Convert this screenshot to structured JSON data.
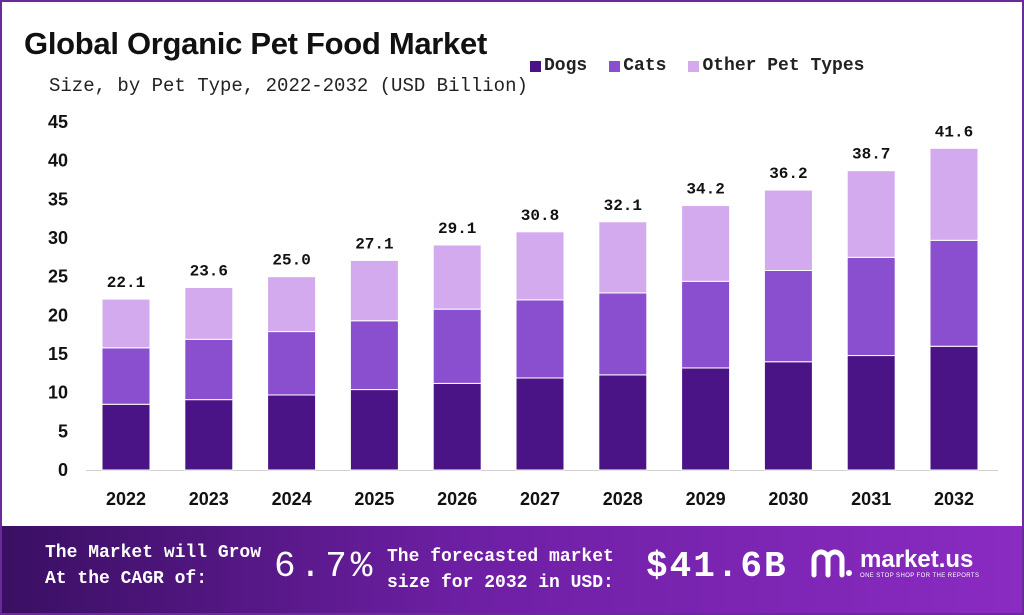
{
  "chart_data": {
    "type": "bar",
    "stacked": true,
    "title": "Global Organic Pet Food Market",
    "subtitle": "Size, by Pet Type, 2022-2032 (USD Billion)",
    "categories": [
      "2022",
      "2023",
      "2024",
      "2025",
      "2026",
      "2027",
      "2028",
      "2029",
      "2030",
      "2031",
      "2032"
    ],
    "series": [
      {
        "name": "Dogs",
        "color": "#4a1486",
        "values": [
          8.5,
          9.1,
          9.7,
          10.4,
          11.2,
          11.9,
          12.3,
          13.2,
          14.0,
          14.8,
          16.0
        ]
      },
      {
        "name": "Cats",
        "color": "#8a4fcf",
        "values": [
          7.3,
          7.8,
          8.2,
          8.9,
          9.6,
          10.1,
          10.6,
          11.2,
          11.8,
          12.7,
          13.7
        ]
      },
      {
        "name": "Other Pet Types",
        "color": "#d3aaee",
        "values": [
          6.3,
          6.7,
          7.1,
          7.8,
          8.3,
          8.8,
          9.2,
          9.8,
          10.4,
          11.2,
          11.9
        ]
      }
    ],
    "totals": [
      "22.1",
      "23.6",
      "25.0",
      "27.1",
      "29.1",
      "30.8",
      "32.1",
      "34.2",
      "36.2",
      "38.7",
      "41.6"
    ],
    "yticks": [
      0,
      5,
      10,
      15,
      20,
      25,
      30,
      35,
      40,
      45
    ],
    "ylim": [
      0,
      45
    ],
    "grid": false,
    "legend_position": "top-right"
  },
  "footer": {
    "cagr_label_line1": "The Market will Grow",
    "cagr_label_line2": "At the CAGR of:",
    "cagr_value": "6.7%",
    "forecast_label_line1": "The forecasted market",
    "forecast_label_line2": "size for 2032 in USD:",
    "forecast_value": "$41.6B",
    "brand_name": "market.us",
    "brand_tagline": "ONE STOP SHOP FOR THE REPORTS"
  }
}
